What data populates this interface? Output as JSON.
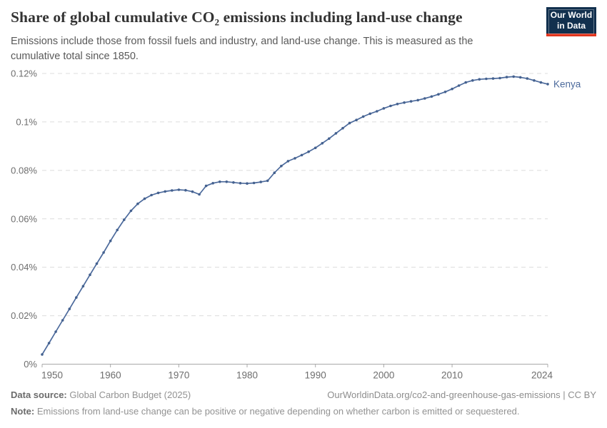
{
  "header": {
    "title": "Share of global cumulative CO₂ emissions including land-use change",
    "subtitle": "Emissions include those from fossil fuels and industry, and land-use change. This is measured as the cumulative total since 1850.",
    "logo": {
      "line1": "Our World",
      "line2": "in Data"
    }
  },
  "chart_data": {
    "type": "line",
    "title": "Share of global cumulative CO₂ emissions including land-use change",
    "entity_label": "Kenya",
    "unit": "%",
    "grid": true,
    "xlim": [
      1950,
      2024
    ],
    "ylim": [
      0,
      0.12
    ],
    "x_ticks": [
      1950,
      1960,
      1970,
      1980,
      1990,
      2000,
      2010,
      2024
    ],
    "y_ticks": [
      {
        "value": 0,
        "label": "0%"
      },
      {
        "value": 0.02,
        "label": "0.02%"
      },
      {
        "value": 0.04,
        "label": "0.04%"
      },
      {
        "value": 0.06,
        "label": "0.06%"
      },
      {
        "value": 0.08,
        "label": "0.08%"
      },
      {
        "value": 0.1,
        "label": "0.1%"
      },
      {
        "value": 0.12,
        "label": "0.12%"
      }
    ],
    "x": [
      1950,
      1951,
      1952,
      1953,
      1954,
      1955,
      1956,
      1957,
      1958,
      1959,
      1960,
      1961,
      1962,
      1963,
      1964,
      1965,
      1966,
      1967,
      1968,
      1969,
      1970,
      1971,
      1972,
      1973,
      1974,
      1975,
      1976,
      1977,
      1978,
      1979,
      1980,
      1981,
      1982,
      1983,
      1984,
      1985,
      1986,
      1987,
      1988,
      1989,
      1990,
      1991,
      1992,
      1993,
      1994,
      1995,
      1996,
      1997,
      1998,
      1999,
      2000,
      2001,
      2002,
      2003,
      2004,
      2005,
      2006,
      2007,
      2008,
      2009,
      2010,
      2011,
      2012,
      2013,
      2014,
      2015,
      2016,
      2017,
      2018,
      2019,
      2020,
      2021,
      2022,
      2023,
      2024
    ],
    "series": [
      {
        "name": "Kenya",
        "values": [
          0.004,
          0.0087,
          0.0134,
          0.0181,
          0.0228,
          0.0275,
          0.0322,
          0.0369,
          0.0415,
          0.0461,
          0.0509,
          0.0554,
          0.0596,
          0.0633,
          0.0662,
          0.0683,
          0.0698,
          0.0707,
          0.0713,
          0.0717,
          0.072,
          0.0718,
          0.0712,
          0.0701,
          0.0736,
          0.0747,
          0.0753,
          0.0753,
          0.075,
          0.0747,
          0.0746,
          0.0748,
          0.0752,
          0.0757,
          0.079,
          0.0818,
          0.0838,
          0.085,
          0.0863,
          0.0877,
          0.0893,
          0.0912,
          0.0931,
          0.0953,
          0.0974,
          0.0995,
          0.1008,
          0.1022,
          0.1034,
          0.1044,
          0.1056,
          0.1066,
          0.1074,
          0.108,
          0.1085,
          0.109,
          0.1097,
          0.1105,
          0.1114,
          0.1124,
          0.1136,
          0.115,
          0.1163,
          0.1171,
          0.1176,
          0.1178,
          0.1179,
          0.1181,
          0.1185,
          0.1187,
          0.1184,
          0.1179,
          0.1171,
          0.1163,
          0.1156
        ]
      }
    ],
    "legend_position": "end-of-line"
  },
  "colors": {
    "line": "#4c6a9c",
    "dot": "#44618f",
    "grid": "#dcdcdc",
    "axis": "#a8a8a8",
    "tick_text": "#6e6e6e",
    "logo_bg": "#12304e",
    "logo_accent": "#e0351e"
  },
  "footer": {
    "source_label": "Data source:",
    "source_value": "Global Carbon Budget (2025)",
    "link_text": "OurWorldinData.org/co2-and-greenhouse-gas-emissions | CC BY",
    "note_label": "Note:",
    "note_value": "Emissions from land-use change can be positive or negative depending on whether carbon is emitted or sequestered."
  }
}
